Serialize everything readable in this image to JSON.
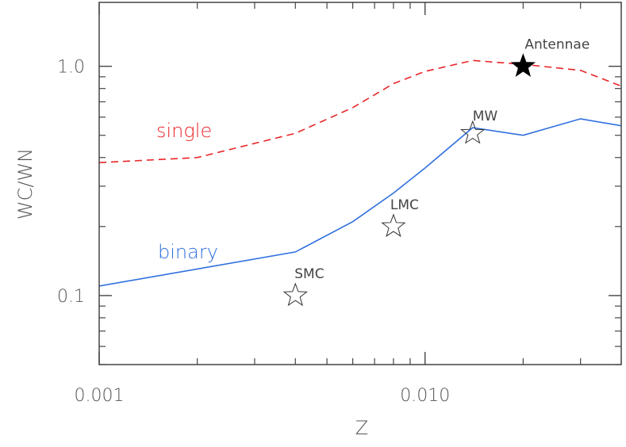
{
  "chart_data": {
    "type": "line",
    "title": "",
    "xlabel": "Z",
    "ylabel": "WC/WN",
    "x_scale": "log",
    "y_scale": "log",
    "xlim": [
      0.001,
      0.04
    ],
    "ylim": [
      0.05,
      1.9
    ],
    "x_ticks": [
      {
        "value": 0.001,
        "label": "0.001"
      },
      {
        "value": 0.01,
        "label": "0.010"
      }
    ],
    "y_ticks": [
      {
        "value": 0.1,
        "label": "0.1"
      },
      {
        "value": 1.0,
        "label": "1.0"
      }
    ],
    "grid": false,
    "series": [
      {
        "name": "single",
        "color": "#e8262a",
        "style": "dashed",
        "x": [
          0.001,
          0.002,
          0.004,
          0.006,
          0.008,
          0.01,
          0.014,
          0.02,
          0.03,
          0.04
        ],
        "y": [
          0.38,
          0.4,
          0.51,
          0.66,
          0.84,
          0.95,
          1.06,
          1.02,
          0.96,
          0.82
        ]
      },
      {
        "name": "binary",
        "color": "#2f6fde",
        "style": "solid",
        "x": [
          0.001,
          0.004,
          0.006,
          0.008,
          0.01,
          0.014,
          0.02,
          0.03,
          0.04
        ],
        "y": [
          0.11,
          0.155,
          0.21,
          0.28,
          0.36,
          0.54,
          0.5,
          0.59,
          0.55
        ]
      }
    ],
    "points": [
      {
        "label": "SMC",
        "x": 0.004,
        "y": 0.1,
        "filled": false
      },
      {
        "label": "LMC",
        "x": 0.008,
        "y": 0.2,
        "filled": false
      },
      {
        "label": "MW",
        "x": 0.014,
        "y": 0.51,
        "filled": false
      },
      {
        "label": "Antennae",
        "x": 0.02,
        "y": 1.0,
        "filled": true
      }
    ]
  }
}
